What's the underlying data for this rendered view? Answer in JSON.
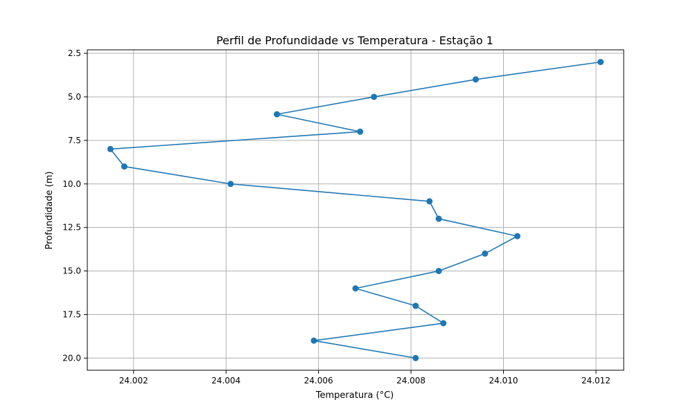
{
  "chart_data": {
    "type": "line",
    "title": "Perfil de Profundidade vs Temperatura - Estação 1",
    "xlabel": "Temperatura (°C)",
    "ylabel": "Profundidade (m)",
    "xlim": [
      24.001,
      24.0126
    ],
    "ylim": [
      20.7,
      2.3
    ],
    "y_inverted": true,
    "grid": true,
    "marker": "circle",
    "x_ticks": [
      "24.002",
      "24.004",
      "24.006",
      "24.008",
      "24.010",
      "24.012"
    ],
    "y_ticks": [
      "2.5",
      "5.0",
      "7.5",
      "10.0",
      "12.5",
      "15.0",
      "17.5",
      "20.0"
    ],
    "series": [
      {
        "color": "#1f77b4",
        "points": [
          {
            "temperature": 24.0121,
            "depth": 3
          },
          {
            "temperature": 24.0094,
            "depth": 4
          },
          {
            "temperature": 24.0072,
            "depth": 5
          },
          {
            "temperature": 24.0051,
            "depth": 6
          },
          {
            "temperature": 24.0069,
            "depth": 7
          },
          {
            "temperature": 24.0015,
            "depth": 8
          },
          {
            "temperature": 24.0018,
            "depth": 9
          },
          {
            "temperature": 24.0041,
            "depth": 10
          },
          {
            "temperature": 24.0084,
            "depth": 11
          },
          {
            "temperature": 24.0086,
            "depth": 12
          },
          {
            "temperature": 24.0103,
            "depth": 13
          },
          {
            "temperature": 24.0096,
            "depth": 14
          },
          {
            "temperature": 24.0086,
            "depth": 15
          },
          {
            "temperature": 24.0068,
            "depth": 16
          },
          {
            "temperature": 24.0081,
            "depth": 17
          },
          {
            "temperature": 24.0087,
            "depth": 18
          },
          {
            "temperature": 24.0059,
            "depth": 19
          },
          {
            "temperature": 24.0081,
            "depth": 20
          }
        ]
      }
    ]
  }
}
